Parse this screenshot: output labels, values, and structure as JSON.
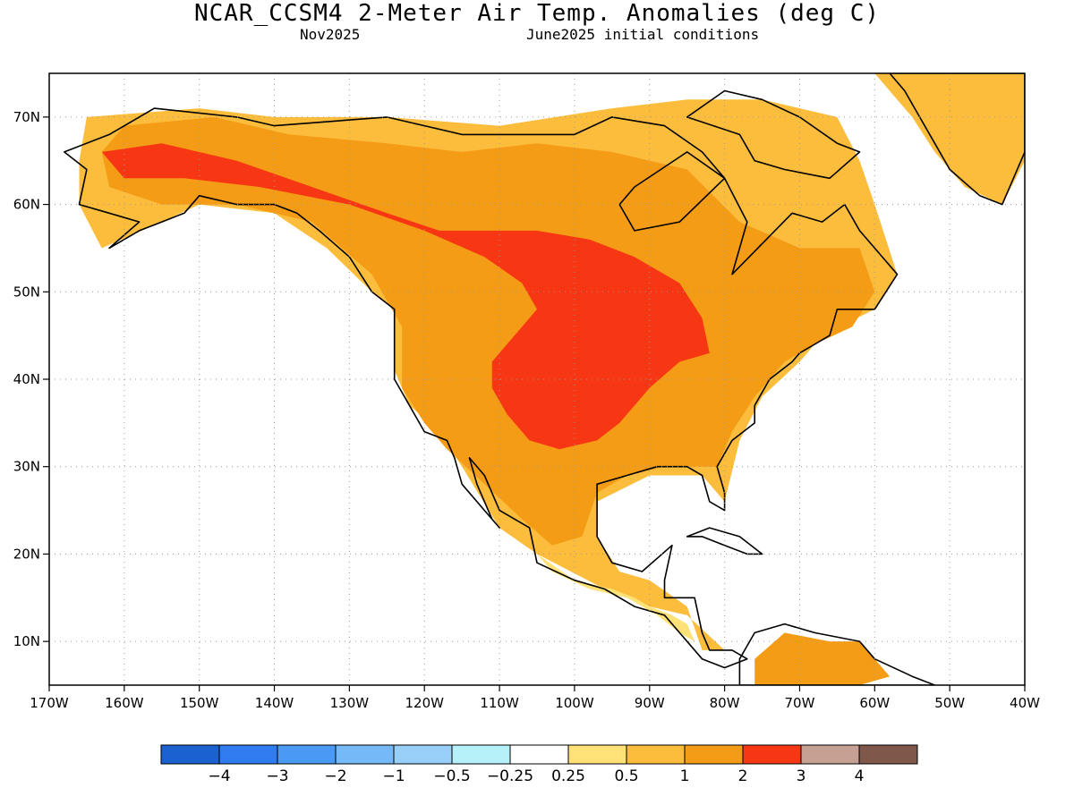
{
  "title": "NCAR_CCSM4 2-Meter Air Temp. Anomalies (deg C)",
  "subtitle_left": "Nov2025",
  "subtitle_right": "June2025 initial conditions",
  "map": {
    "extent": {
      "lon": [
        -170,
        -40
      ],
      "lat": [
        5,
        75
      ]
    },
    "lon_ticks": [
      {
        "lon": -170,
        "label": "170W"
      },
      {
        "lon": -160,
        "label": "160W"
      },
      {
        "lon": -150,
        "label": "150W"
      },
      {
        "lon": -140,
        "label": "140W"
      },
      {
        "lon": -130,
        "label": "130W"
      },
      {
        "lon": -120,
        "label": "120W"
      },
      {
        "lon": -110,
        "label": "110W"
      },
      {
        "lon": -100,
        "label": "100W"
      },
      {
        "lon": -90,
        "label": "90W"
      },
      {
        "lon": -80,
        "label": "80W"
      },
      {
        "lon": -70,
        "label": "70W"
      },
      {
        "lon": -60,
        "label": "60W"
      },
      {
        "lon": -50,
        "label": "50W"
      },
      {
        "lon": -40,
        "label": "40W"
      }
    ],
    "lat_ticks": [
      {
        "lat": 70,
        "label": "70N"
      },
      {
        "lat": 60,
        "label": "60N"
      },
      {
        "lat": 50,
        "label": "50N"
      },
      {
        "lat": 40,
        "label": "40N"
      },
      {
        "lat": 30,
        "label": "30N"
      },
      {
        "lat": 20,
        "label": "20N"
      },
      {
        "lat": 10,
        "label": "10N"
      }
    ],
    "grid": true,
    "anomaly_regions": [
      {
        "name": "north-america-land-0.5",
        "color": "#fcbd3c",
        "level": "0.5 to 1",
        "outline": [
          [
            -165,
            70
          ],
          [
            -150,
            71
          ],
          [
            -140,
            70
          ],
          [
            -125,
            70
          ],
          [
            -110,
            69
          ],
          [
            -95,
            71
          ],
          [
            -85,
            72
          ],
          [
            -75,
            72
          ],
          [
            -65,
            70
          ],
          [
            -62,
            65
          ],
          [
            -60,
            60
          ],
          [
            -57,
            52
          ],
          [
            -60,
            48
          ],
          [
            -67,
            45
          ],
          [
            -70,
            42
          ],
          [
            -75,
            38
          ],
          [
            -78,
            33
          ],
          [
            -80,
            26
          ],
          [
            -83,
            29
          ],
          [
            -90,
            29
          ],
          [
            -97,
            26
          ],
          [
            -97,
            22
          ],
          [
            -94,
            18
          ],
          [
            -90,
            17
          ],
          [
            -85,
            14
          ],
          [
            -83,
            9
          ],
          [
            -80,
            9
          ],
          [
            -85,
            13
          ],
          [
            -90,
            14
          ],
          [
            -96,
            16
          ],
          [
            -105,
            20
          ],
          [
            -110,
            23
          ],
          [
            -115,
            30
          ],
          [
            -118,
            34
          ],
          [
            -122,
            37
          ],
          [
            -124,
            41
          ],
          [
            -124,
            48
          ],
          [
            -127,
            50
          ],
          [
            -133,
            55
          ],
          [
            -140,
            59
          ],
          [
            -150,
            60
          ],
          [
            -155,
            58
          ],
          [
            -163,
            55
          ],
          [
            -166,
            60
          ],
          [
            -166,
            65
          ]
        ]
      },
      {
        "name": "central-warm-1",
        "color": "#f59c16",
        "level": "1 to 2",
        "outline": [
          [
            -163,
            66
          ],
          [
            -160,
            69
          ],
          [
            -148,
            70
          ],
          [
            -138,
            68
          ],
          [
            -125,
            67
          ],
          [
            -115,
            66
          ],
          [
            -105,
            67
          ],
          [
            -95,
            66
          ],
          [
            -85,
            64
          ],
          [
            -78,
            58
          ],
          [
            -70,
            55
          ],
          [
            -62,
            55
          ],
          [
            -60,
            50
          ],
          [
            -63,
            46
          ],
          [
            -68,
            44
          ],
          [
            -72,
            42
          ],
          [
            -76,
            38
          ],
          [
            -79,
            34
          ],
          [
            -81,
            30
          ],
          [
            -88,
            30
          ],
          [
            -93,
            29
          ],
          [
            -97,
            27
          ],
          [
            -99,
            22
          ],
          [
            -103,
            21
          ],
          [
            -107,
            24
          ],
          [
            -112,
            28
          ],
          [
            -117,
            32
          ],
          [
            -120,
            35
          ],
          [
            -123,
            39
          ],
          [
            -123,
            46
          ],
          [
            -127,
            52
          ],
          [
            -135,
            58
          ],
          [
            -145,
            60
          ],
          [
            -155,
            60
          ],
          [
            -162,
            62
          ]
        ]
      },
      {
        "name": "core-warm-2",
        "color": "#f73713",
        "level": "2 to 3",
        "outline": [
          [
            -163,
            66
          ],
          [
            -155,
            67
          ],
          [
            -145,
            65
          ],
          [
            -135,
            62
          ],
          [
            -125,
            59
          ],
          [
            -118,
            57
          ],
          [
            -112,
            57
          ],
          [
            -105,
            57
          ],
          [
            -98,
            56
          ],
          [
            -92,
            54
          ],
          [
            -86,
            51
          ],
          [
            -83,
            47
          ],
          [
            -82,
            43
          ],
          [
            -86,
            42
          ],
          [
            -90,
            39
          ],
          [
            -94,
            35
          ],
          [
            -97,
            33
          ],
          [
            -102,
            32
          ],
          [
            -106,
            33
          ],
          [
            -109,
            36
          ],
          [
            -111,
            39
          ],
          [
            -111,
            42
          ],
          [
            -108,
            45
          ],
          [
            -105,
            48
          ],
          [
            -107,
            51
          ],
          [
            -112,
            54
          ],
          [
            -120,
            57
          ],
          [
            -130,
            60
          ],
          [
            -142,
            62
          ],
          [
            -152,
            63
          ],
          [
            -160,
            63
          ]
        ]
      },
      {
        "name": "southern-mexico-0.25",
        "color": "#fee177",
        "level": "0.25 to 0.5",
        "outline": [
          [
            -105,
            20
          ],
          [
            -100,
            17
          ],
          [
            -95,
            16
          ],
          [
            -92,
            15
          ],
          [
            -90,
            14
          ],
          [
            -87,
            13
          ],
          [
            -85,
            12
          ],
          [
            -84,
            10
          ],
          [
            -86,
            11
          ],
          [
            -89,
            13
          ],
          [
            -93,
            15
          ],
          [
            -98,
            16
          ],
          [
            -103,
            18
          ]
        ]
      },
      {
        "name": "greenland-warm",
        "color": "#fcbd3c",
        "level": "0.5 to 1",
        "outline": [
          [
            -57,
            75
          ],
          [
            -45,
            75
          ],
          [
            -40,
            75
          ],
          [
            -40,
            65
          ],
          [
            -43,
            60
          ],
          [
            -48,
            62
          ],
          [
            -52,
            66
          ],
          [
            -55,
            70
          ],
          [
            -60,
            75
          ]
        ]
      },
      {
        "name": "venezuela-warm",
        "color": "#f59c16",
        "level": "1 to 2",
        "outline": [
          [
            -76,
            8
          ],
          [
            -72,
            11
          ],
          [
            -66,
            10
          ],
          [
            -62,
            10
          ],
          [
            -60,
            8
          ],
          [
            -58,
            6
          ],
          [
            -62,
            5
          ],
          [
            -70,
            5
          ],
          [
            -76,
            5
          ]
        ]
      }
    ],
    "landmasses": [
      {
        "name": "north-america",
        "outline": [
          [
            -166,
            60
          ],
          [
            -165,
            64
          ],
          [
            -168,
            66
          ],
          [
            -162,
            68
          ],
          [
            -156,
            71
          ],
          [
            -145,
            70
          ],
          [
            -140,
            69
          ],
          [
            -125,
            70
          ],
          [
            -115,
            68
          ],
          [
            -100,
            68
          ],
          [
            -95,
            70
          ],
          [
            -88,
            69
          ],
          [
            -83,
            66
          ],
          [
            -80,
            63
          ],
          [
            -86,
            58
          ],
          [
            -92,
            57
          ],
          [
            -94,
            60
          ],
          [
            -92,
            62
          ],
          [
            -85,
            66
          ],
          [
            -80,
            63
          ],
          [
            -77,
            58
          ],
          [
            -78,
            55
          ],
          [
            -79,
            52
          ],
          [
            -71,
            59
          ],
          [
            -67,
            58
          ],
          [
            -64,
            60
          ],
          [
            -62,
            57
          ],
          [
            -60,
            55
          ],
          [
            -57,
            52
          ],
          [
            -60,
            48
          ],
          [
            -65,
            48
          ],
          [
            -66,
            45
          ],
          [
            -70,
            43
          ],
          [
            -71,
            42
          ],
          [
            -74,
            40
          ],
          [
            -76,
            37
          ],
          [
            -76,
            35
          ],
          [
            -79,
            33
          ],
          [
            -81,
            30
          ],
          [
            -80,
            27
          ],
          [
            -80,
            25
          ],
          [
            -82,
            26
          ],
          [
            -83,
            29
          ],
          [
            -85,
            30
          ],
          [
            -89,
            30
          ],
          [
            -93,
            29
          ],
          [
            -97,
            28
          ],
          [
            -97,
            25
          ],
          [
            -97,
            22
          ],
          [
            -95,
            19
          ],
          [
            -91,
            18
          ],
          [
            -87,
            21
          ],
          [
            -88,
            17
          ],
          [
            -88,
            15
          ],
          [
            -84,
            15
          ],
          [
            -83,
            11
          ],
          [
            -82,
            9
          ],
          [
            -79,
            9
          ],
          [
            -77,
            8
          ],
          [
            -80,
            7
          ],
          [
            -83,
            8
          ],
          [
            -86,
            11
          ],
          [
            -88,
            13
          ],
          [
            -92,
            14
          ],
          [
            -96,
            16
          ],
          [
            -100,
            17
          ],
          [
            -105,
            19
          ],
          [
            -106,
            23
          ],
          [
            -110,
            25
          ],
          [
            -112,
            29
          ],
          [
            -114,
            31
          ],
          [
            -113,
            28
          ],
          [
            -111,
            24
          ],
          [
            -110,
            23
          ],
          [
            -112,
            25
          ],
          [
            -115,
            28
          ],
          [
            -116,
            31
          ],
          [
            -117,
            33
          ],
          [
            -120,
            34
          ],
          [
            -122,
            37
          ],
          [
            -124,
            40
          ],
          [
            -124,
            46
          ],
          [
            -124,
            48
          ],
          [
            -127,
            50
          ],
          [
            -130,
            54
          ],
          [
            -134,
            57
          ],
          [
            -137,
            59
          ],
          [
            -140,
            60
          ],
          [
            -145,
            60
          ],
          [
            -150,
            61
          ],
          [
            -152,
            59
          ],
          [
            -155,
            58
          ],
          [
            -158,
            57
          ],
          [
            -162,
            55
          ],
          [
            -158,
            58
          ],
          [
            -162,
            59
          ]
        ]
      },
      {
        "name": "greenland",
        "outline": [
          [
            -58,
            75
          ],
          [
            -40,
            75
          ],
          [
            -40,
            66
          ],
          [
            -43,
            60
          ],
          [
            -46,
            61
          ],
          [
            -50,
            64
          ],
          [
            -52,
            67
          ],
          [
            -54,
            70
          ],
          [
            -56,
            73
          ]
        ]
      },
      {
        "name": "baffin-island",
        "outline": [
          [
            -80,
            73
          ],
          [
            -75,
            72
          ],
          [
            -70,
            70
          ],
          [
            -65,
            67
          ],
          [
            -62,
            66
          ],
          [
            -66,
            63
          ],
          [
            -72,
            64
          ],
          [
            -76,
            65
          ],
          [
            -78,
            68
          ],
          [
            -85,
            70
          ]
        ]
      },
      {
        "name": "cuba",
        "outline": [
          [
            -85,
            22
          ],
          [
            -82,
            23
          ],
          [
            -78,
            22
          ],
          [
            -75,
            20
          ],
          [
            -77,
            20
          ],
          [
            -80,
            21
          ],
          [
            -83,
            22
          ]
        ]
      },
      {
        "name": "south-america",
        "outline": [
          [
            -78,
            8
          ],
          [
            -76,
            11
          ],
          [
            -72,
            12
          ],
          [
            -68,
            11
          ],
          [
            -62,
            10
          ],
          [
            -60,
            8
          ],
          [
            -55,
            6
          ],
          [
            -52,
            5
          ],
          [
            -78,
            5
          ]
        ]
      }
    ]
  },
  "colorbar": {
    "colors": [
      "#1c61d0",
      "#2f7bef",
      "#4a99f4",
      "#76b9f8",
      "#97cff8",
      "#b6f1fa",
      "#ffffff",
      "#fee177",
      "#fcbd3c",
      "#f59c16",
      "#f73713",
      "#c6a193",
      "#80584b"
    ],
    "labels": [
      "−4",
      "−3",
      "−2",
      "−1",
      "−0.5",
      "−0.25",
      "0.25",
      "0.5",
      "1",
      "2",
      "3",
      "4"
    ]
  }
}
